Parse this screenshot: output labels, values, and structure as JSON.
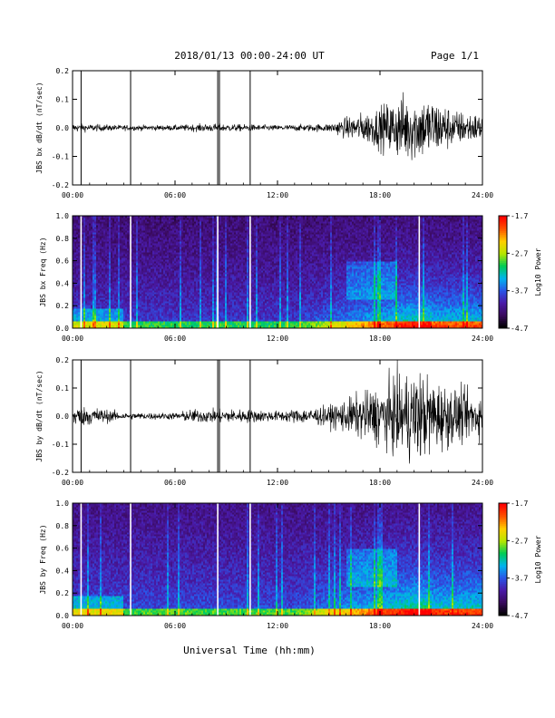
{
  "header": {
    "title": "2018/01/13  00:00-24:00 UT",
    "page": "Page 1/1"
  },
  "footer": {
    "xlabel": "Universal Time (hh:mm)"
  },
  "time_ticks": [
    "00:00",
    "06:00",
    "12:00",
    "18:00",
    "24:00"
  ],
  "colors": {
    "waveform": "#000000",
    "gap_lines": "#ffffff",
    "colormap": [
      "#000000",
      "#3a0a5e",
      "#4a1aa8",
      "#2a55e8",
      "#00b4ee",
      "#00cc55",
      "#b6e600",
      "#ffd000",
      "#ff5500",
      "#ff0000"
    ]
  },
  "chart_data": [
    {
      "type": "line",
      "ylabel": "JBS bx dB/dt (nT/sec)",
      "ylim": [
        -0.2,
        0.2
      ],
      "y_ticks": [
        "0.2",
        "0.1",
        "0.0",
        "-0.1",
        "-0.2"
      ],
      "xlim_hours": [
        0,
        24
      ],
      "spikes_hours": [
        0.5,
        3.4,
        8.5,
        8.6,
        10.4
      ],
      "amplitude_profile": [
        {
          "t": 0,
          "a": 0.012
        },
        {
          "t": 3,
          "a": 0.008
        },
        {
          "t": 6,
          "a": 0.008
        },
        {
          "t": 8,
          "a": 0.012
        },
        {
          "t": 10,
          "a": 0.01
        },
        {
          "t": 12,
          "a": 0.008
        },
        {
          "t": 15,
          "a": 0.012
        },
        {
          "t": 16,
          "a": 0.03
        },
        {
          "t": 17.5,
          "a": 0.05
        },
        {
          "t": 19.5,
          "a": 0.1
        },
        {
          "t": 21,
          "a": 0.09
        },
        {
          "t": 22.5,
          "a": 0.05
        },
        {
          "t": 24,
          "a": 0.04
        }
      ]
    },
    {
      "type": "heatmap",
      "ylabel": "JBS bx Freq (Hz)",
      "ylim": [
        0.0,
        1.0
      ],
      "y_ticks": [
        "1.0",
        "0.8",
        "0.6",
        "0.4",
        "0.2",
        "0.0"
      ],
      "colorbar_label": "Log10 Power",
      "colorbar_ticks": [
        "-1.7",
        "-2.7",
        "-3.7",
        "-4.7"
      ],
      "crange": [
        -4.7,
        -1.7
      ],
      "xlim_hours": [
        0,
        24
      ],
      "gaps_hours": [
        0.5,
        3.4,
        8.5,
        10.4,
        20.3
      ]
    },
    {
      "type": "line",
      "ylabel": "JBS by dB/dt (nT/sec)",
      "ylim": [
        -0.2,
        0.2
      ],
      "y_ticks": [
        "0.2",
        "0.1",
        "0.0",
        "-0.1",
        "-0.2"
      ],
      "xlim_hours": [
        0,
        24
      ],
      "spikes_hours": [
        0.5,
        3.4,
        8.5,
        8.6,
        10.4
      ],
      "amplitude_profile": [
        {
          "t": 0,
          "a": 0.03
        },
        {
          "t": 1.5,
          "a": 0.025
        },
        {
          "t": 3,
          "a": 0.01
        },
        {
          "t": 6,
          "a": 0.01
        },
        {
          "t": 7,
          "a": 0.02
        },
        {
          "t": 10,
          "a": 0.02
        },
        {
          "t": 12,
          "a": 0.015
        },
        {
          "t": 15,
          "a": 0.03
        },
        {
          "t": 16.5,
          "a": 0.06
        },
        {
          "t": 18,
          "a": 0.09
        },
        {
          "t": 20,
          "a": 0.14
        },
        {
          "t": 22,
          "a": 0.09
        },
        {
          "t": 24,
          "a": 0.06
        }
      ]
    },
    {
      "type": "heatmap",
      "ylabel": "JBS by Freq (Hz)",
      "ylim": [
        0.0,
        1.0
      ],
      "y_ticks": [
        "1.0",
        "0.8",
        "0.6",
        "0.4",
        "0.2",
        "0.0"
      ],
      "colorbar_label": "Log10 Power",
      "colorbar_ticks": [
        "-1.7",
        "-2.7",
        "-3.7",
        "-4.7"
      ],
      "crange": [
        -4.7,
        -1.7
      ],
      "xlim_hours": [
        0,
        24
      ],
      "gaps_hours": [
        0.5,
        3.4,
        8.5,
        10.4,
        20.3
      ]
    }
  ]
}
